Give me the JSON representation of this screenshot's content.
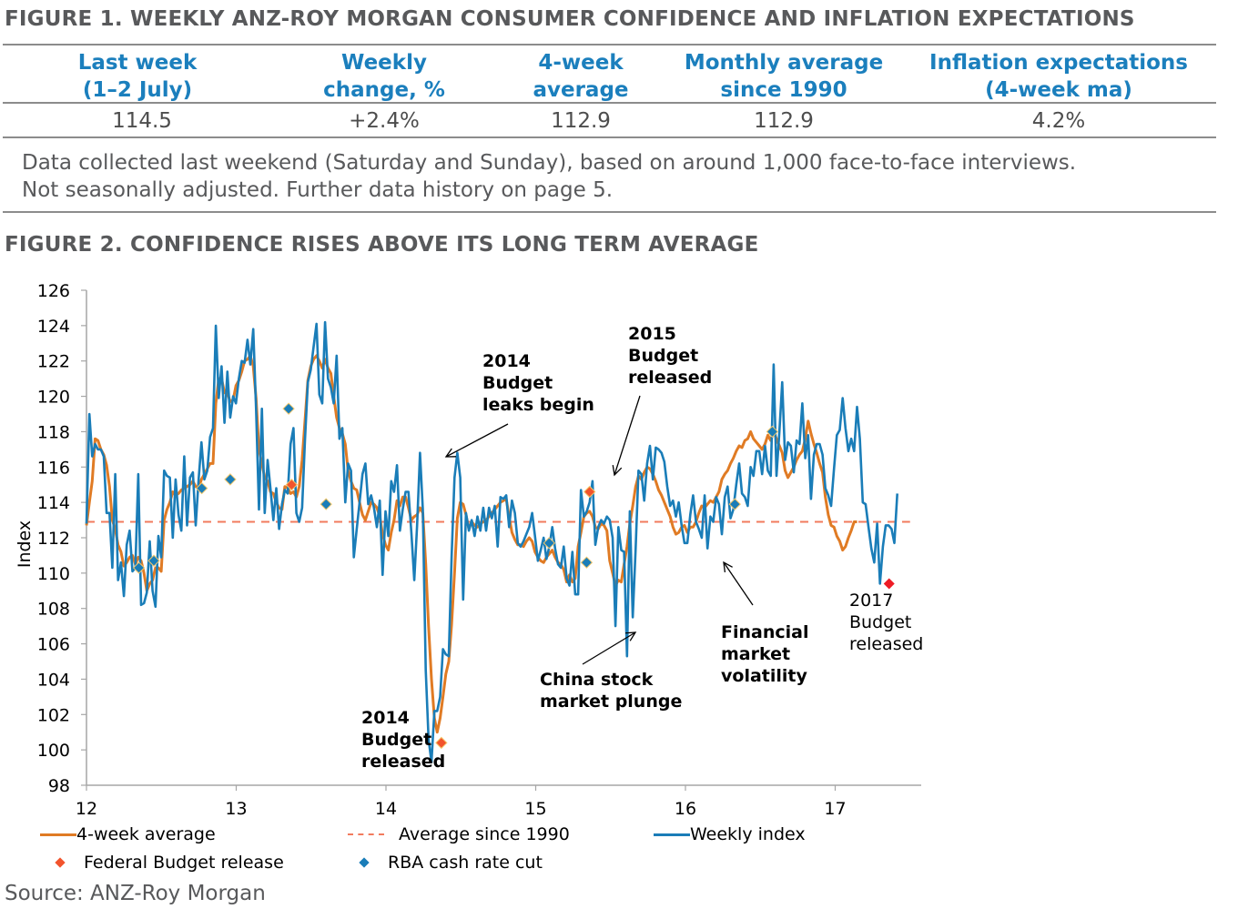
{
  "figure1": {
    "title": "FIGURE 1. WEEKLY ANZ-ROY MORGAN CONSUMER CONFIDENCE AND INFLATION EXPECTATIONS",
    "columns": [
      {
        "header_line1": "Last week",
        "header_line2": "(1–2 July)",
        "value": "114.5"
      },
      {
        "header_line1": "Weekly",
        "header_line2": "change, %",
        "value": "+2.4%"
      },
      {
        "header_line1": "4-week",
        "header_line2": "average",
        "value": "112.9"
      },
      {
        "header_line1": "Monthly average",
        "header_line2": "since 1990",
        "value": "112.9"
      },
      {
        "header_line1": "Inflation expectations",
        "header_line2": "(4-week ma)",
        "value": "4.2%"
      }
    ],
    "note_line1": "Data collected last weekend (Saturday and Sunday), based on around 1,000 face-to-face interviews.",
    "note_line2": "Not seasonally adjusted. Further data history on page 5."
  },
  "figure2": {
    "title": "FIGURE 2. CONFIDENCE RISES ABOVE ITS LONG TERM AVERAGE"
  },
  "source": "Source: ANZ-Roy Morgan",
  "chart_data": {
    "type": "line",
    "title": "FIGURE 2. CONFIDENCE RISES ABOVE ITS LONG TERM AVERAGE",
    "xlabel": "",
    "ylabel": "Index",
    "xlim": [
      12,
      17.6
    ],
    "ylim": [
      98,
      126
    ],
    "x_ticks": [
      "12",
      "13",
      "14",
      "15",
      "16",
      "17"
    ],
    "y_ticks": [
      "98",
      "100",
      "102",
      "104",
      "106",
      "108",
      "110",
      "112",
      "114",
      "116",
      "118",
      "120",
      "122",
      "124",
      "126"
    ],
    "grid": false,
    "legend_position": "bottom",
    "colors": {
      "four_week": "#e07b24",
      "average": "#f27b5e",
      "weekly": "#1a7db8",
      "budget": "#f2542d",
      "budget_2017": "#ee1c25",
      "rba": "#1a7db8"
    },
    "legend": [
      {
        "label": "4-week average",
        "kind": "line",
        "color": "#e07b24"
      },
      {
        "label": "Average since 1990",
        "kind": "dash",
        "color": "#f27b5e"
      },
      {
        "label": "Weekly index",
        "kind": "line",
        "color": "#1a7db8"
      },
      {
        "label": "Federal Budget release",
        "kind": "diamond",
        "color": "#f2542d"
      },
      {
        "label": "RBA cash rate cut",
        "kind": "diamond",
        "color": "#1a7db8"
      }
    ],
    "average_since_1990": 112.9,
    "weekly_start": 12.0,
    "weekly_step": 0.0192,
    "series": [
      {
        "name": "Weekly index",
        "values": [
          112.8,
          119.0,
          116.6,
          117.3,
          117.0,
          117.0,
          116.6,
          113.4,
          113.4,
          110.3,
          115.6,
          109.6,
          110.6,
          108.7,
          111.6,
          112.4,
          110.1,
          110.3,
          115.6,
          108.2,
          108.3,
          108.9,
          111.8,
          109.0,
          108.1,
          112.1,
          110.9,
          115.8,
          115.5,
          115.4,
          112.0,
          115.3,
          113.3,
          112.4,
          116.6,
          112.7,
          115.4,
          115.7,
          112.7,
          115.3,
          117.4,
          115.3,
          115.8,
          117.7,
          118.2,
          124.0,
          119.9,
          121.7,
          118.5,
          121.4,
          118.8,
          120.0,
          119.6,
          121.0,
          122.0,
          121.9,
          123.2,
          121.8,
          123.8,
          119.3,
          113.6,
          119.3,
          113.4,
          116.4,
          114.8,
          113.0,
          114.8,
          112.5,
          113.9,
          114.7,
          114.5,
          117.3,
          118.2,
          113.4,
          112.9,
          113.7,
          117.5,
          120.8,
          121.5,
          122.8,
          124.1,
          120.1,
          119.6,
          124.2,
          121.0,
          120.5,
          119.6,
          122.3,
          117.6,
          118.2,
          114.0,
          116.2,
          115.8,
          110.9,
          112.5,
          114.0,
          115.6,
          116.2,
          113.9,
          114.4,
          113.7,
          112.6,
          114.1,
          109.9,
          113.5,
          112.1,
          115.2,
          114.6,
          116.1,
          112.4,
          113.6,
          114.6,
          114.6,
          112.3,
          109.6,
          112.7,
          116.8,
          113.6,
          104.5,
          100.6,
          99.3,
          102.2,
          102.2,
          103.0,
          105.7,
          105.4,
          105.3,
          110.9,
          115.4,
          116.8,
          115.4,
          108.5,
          113.4,
          112.4,
          113.0,
          112.1,
          113.2,
          112.4,
          113.7,
          112.4,
          113.7,
          113.1,
          113.8,
          111.5,
          114.3,
          114.2,
          114.4,
          112.6,
          114.1,
          113.4,
          111.7,
          111.5,
          111.8,
          112.2,
          112.6,
          113.4,
          112.1,
          110.7,
          111.3,
          112.0,
          110.8,
          111.5,
          112.6,
          111.4,
          110.5,
          110.3,
          111.5,
          109.7,
          109.3,
          111.2,
          108.8,
          108.8,
          114.7,
          113.2,
          113.5,
          114.0,
          115.2,
          111.6,
          112.6,
          113.0,
          112.8,
          113.2,
          113.0,
          112.0,
          107.0,
          112.6,
          111.3,
          111.2,
          105.3,
          113.5,
          107.5,
          111.4,
          115.8,
          115.6,
          114.1,
          116.2,
          117.2,
          115.3,
          117.1,
          117.0,
          116.8,
          116.3,
          114.9,
          113.8,
          114.1,
          113.2,
          114.0,
          112.7,
          111.7,
          111.7,
          113.3,
          114.4,
          112.9,
          112.5,
          112.0,
          114.4,
          111.4,
          113.2,
          112.9,
          114.3,
          113.9,
          112.2,
          114.3,
          114.9,
          113.1,
          113.6,
          115.0,
          116.2,
          114.5,
          114.3,
          113.8,
          116.0,
          115.5,
          116.9,
          116.9,
          115.6,
          117.2,
          115.8,
          115.5,
          121.8,
          115.5,
          118.0,
          120.8,
          116.4,
          117.4,
          117.2,
          115.7,
          117.5,
          117.3,
          119.6,
          116.5,
          117.8,
          114.2,
          116.7,
          117.3,
          117.3,
          116.7,
          114.8,
          114.4,
          113.8,
          115.9,
          117.8,
          118.1,
          119.9,
          118.2,
          116.9,
          117.6,
          116.9,
          119.4,
          117.6,
          114.0,
          113.9,
          112.6,
          111.4,
          110.6,
          112.8,
          109.4,
          111.5,
          112.7,
          112.7,
          112.5,
          111.7,
          114.5
        ]
      },
      {
        "name": "4-week average",
        "values": [
          112.7,
          114.0,
          115.2,
          117.6,
          117.5,
          117.0,
          116.7,
          116.1,
          114.9,
          113.0,
          112.5,
          111.6,
          111.2,
          110.4,
          110.6,
          110.9,
          111.0,
          110.5,
          110.9,
          110.7,
          110.0,
          109.0,
          109.4,
          109.6,
          110.3,
          110.3,
          110.1,
          113.0,
          113.6,
          114.0,
          114.6,
          114.4,
          114.5,
          114.7,
          114.8,
          114.9,
          115.0,
          115.2,
          114.9,
          114.8,
          115.3,
          115.6,
          115.9,
          116.2,
          116.2,
          119.6,
          121.0,
          121.0,
          120.2,
          120.2,
          119.7,
          119.8,
          120.6,
          120.9,
          121.4,
          122.0,
          122.1,
          122.3,
          121.7,
          119.9,
          117.0,
          116.2,
          115.4,
          115.2,
          114.6,
          114.5,
          114.0,
          113.7,
          113.6,
          114.9,
          114.8,
          114.5,
          114.6,
          114.3,
          114.9,
          116.4,
          118.6,
          120.9,
          121.7,
          122.1,
          122.3,
          122.0,
          121.6,
          122.1,
          121.6,
          121.3,
          120.0,
          118.8,
          118.2,
          117.9,
          117.3,
          115.8,
          115.2,
          114.8,
          114.7,
          114.0,
          113.3,
          113.0,
          113.5,
          114.0,
          113.9,
          113.7,
          113.2,
          112.2,
          111.6,
          111.3,
          112.3,
          113.0,
          114.1,
          113.8,
          114.3,
          114.3,
          113.7,
          113.0,
          113.2,
          113.3,
          113.7,
          113.4,
          110.5,
          107.0,
          104.0,
          101.8,
          101.0,
          101.8,
          103.0,
          104.3,
          105.0,
          107.1,
          110.0,
          113.1,
          114.0,
          113.9,
          113.3,
          112.5,
          112.9,
          112.7,
          112.6,
          112.8,
          112.9,
          113.0,
          113.2,
          113.4,
          113.6,
          113.8,
          114.0,
          114.1,
          114.2,
          113.2,
          112.3,
          111.9,
          111.6,
          111.6,
          111.5,
          111.8,
          112.0,
          111.8,
          111.2,
          110.9,
          110.7,
          110.6,
          110.9,
          111.1,
          111.3,
          110.9,
          110.6,
          110.5,
          110.2,
          109.5,
          109.9,
          109.5,
          109.7,
          111.5,
          112.3,
          113.2,
          113.4,
          113.5,
          113.2,
          112.6,
          112.5,
          112.8,
          112.7,
          112.4,
          110.7,
          110.0,
          109.3,
          109.6,
          109.5,
          110.5,
          111.5,
          112.8,
          113.8,
          114.9,
          115.5,
          115.3,
          115.7,
          116.0,
          115.9,
          115.6,
          115.2,
          114.7,
          114.4,
          114.0,
          113.6,
          113.2,
          112.6,
          112.2,
          112.3,
          112.6,
          112.7,
          112.3,
          112.6,
          112.6,
          112.9,
          113.4,
          113.8,
          113.7,
          113.9,
          114.1,
          114.0,
          114.3,
          114.6,
          115.3,
          115.6,
          115.8,
          116.2,
          116.5,
          116.9,
          117.2,
          117.1,
          117.5,
          117.6,
          118.0,
          117.6,
          117.4,
          117.2,
          117.0,
          117.3,
          117.8,
          117.5,
          118.0,
          117.6,
          117.2,
          116.8,
          115.8,
          115.4,
          115.7,
          116.0,
          116.4,
          116.7,
          116.9,
          117.6,
          118.6,
          117.9,
          117.3,
          116.8,
          116.2,
          115.7,
          114.3,
          113.3,
          112.7,
          112.6,
          112.1,
          111.8,
          111.3,
          111.5,
          112.0,
          112.4,
          112.9,
          112.9
        ]
      }
    ],
    "events": [
      {
        "type": "RBA cash rate cut",
        "x": 12.35,
        "y": 110.3
      },
      {
        "type": "RBA cash rate cut",
        "x": 12.45,
        "y": 110.7
      },
      {
        "type": "RBA cash rate cut",
        "x": 12.77,
        "y": 114.8
      },
      {
        "type": "RBA cash rate cut",
        "x": 12.96,
        "y": 115.3
      },
      {
        "type": "RBA cash rate cut",
        "x": 13.35,
        "y": 119.3
      },
      {
        "type": "Federal Budget release",
        "x": 13.37,
        "y": 115.0
      },
      {
        "type": "RBA cash rate cut",
        "x": 13.6,
        "y": 113.9
      },
      {
        "type": "Federal Budget release",
        "x": 14.37,
        "y": 100.4
      },
      {
        "type": "RBA cash rate cut",
        "x": 15.09,
        "y": 111.7
      },
      {
        "type": "RBA cash rate cut",
        "x": 15.34,
        "y": 110.6
      },
      {
        "type": "Federal Budget release",
        "x": 15.36,
        "y": 114.6
      },
      {
        "type": "RBA cash rate cut",
        "x": 16.33,
        "y": 113.9
      },
      {
        "type": "RBA cash rate cut",
        "x": 16.58,
        "y": 118.0
      },
      {
        "type": "Federal Budget release",
        "x": 17.36,
        "y": 109.4
      }
    ],
    "annotations": [
      {
        "lines": [
          "2014",
          "Budget",
          "leaks begin"
        ],
        "bold": true
      },
      {
        "lines": [
          "2015",
          "Budget",
          "released"
        ],
        "bold": true
      },
      {
        "lines": [
          "2014",
          "Budget",
          "released"
        ],
        "bold": true
      },
      {
        "lines": [
          "China stock",
          "market plunge"
        ],
        "bold": true
      },
      {
        "lines": [
          "Financial",
          "market",
          "volatility"
        ],
        "bold": true
      },
      {
        "lines": [
          "2017",
          "Budget",
          "released"
        ],
        "bold": false
      }
    ]
  }
}
